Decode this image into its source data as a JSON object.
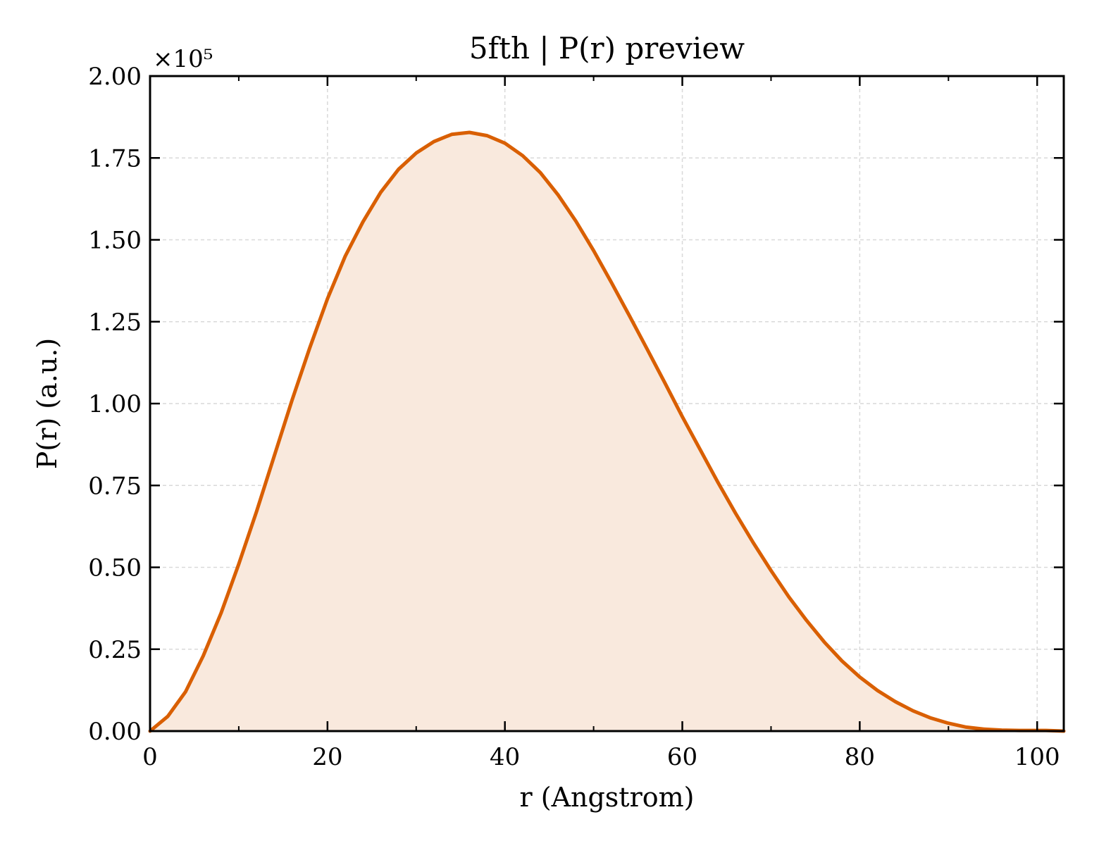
{
  "chart_data": {
    "type": "area",
    "title": "5fth | P(r) preview",
    "xlabel": "r (Angstrom)",
    "ylabel": "P(r) (a.u.)",
    "y_offset_label": "×10⁵",
    "xlim": [
      0,
      103
    ],
    "ylim": [
      0,
      2.0
    ],
    "y_scale_factor": 100000,
    "xticks": [
      0,
      20,
      40,
      60,
      80,
      100
    ],
    "xtick_labels": [
      "0",
      "20",
      "40",
      "60",
      "80",
      "100"
    ],
    "yticks": [
      0,
      0.25,
      0.5,
      0.75,
      1.0,
      1.25,
      1.5,
      1.75,
      2.0
    ],
    "ytick_labels": [
      "0.00",
      "0.25",
      "0.50",
      "0.75",
      "1.00",
      "1.25",
      "1.50",
      "1.75",
      "2.00"
    ],
    "grid": true,
    "colors": {
      "line": "#d95f02",
      "fill": "#f9e9dd",
      "grid": "#d9d9d9",
      "axes": "#000000"
    },
    "series": [
      {
        "x": [
          0,
          2,
          4,
          6,
          8,
          10,
          12,
          14,
          16,
          18,
          20,
          22,
          24,
          26,
          28,
          30,
          32,
          34,
          36,
          38,
          40,
          42,
          44,
          46,
          48,
          50,
          52,
          54,
          56,
          58,
          60,
          62,
          64,
          66,
          68,
          70,
          72,
          74,
          76,
          78,
          80,
          82,
          84,
          86,
          88,
          90,
          92,
          94,
          96,
          98,
          100,
          101,
          103
        ],
        "y": [
          0.0,
          0.045,
          0.12,
          0.23,
          0.36,
          0.51,
          0.67,
          0.84,
          1.01,
          1.17,
          1.32,
          1.45,
          1.555,
          1.645,
          1.715,
          1.765,
          1.8,
          1.822,
          1.828,
          1.818,
          1.795,
          1.757,
          1.705,
          1.637,
          1.557,
          1.467,
          1.37,
          1.27,
          1.168,
          1.065,
          0.96,
          0.86,
          0.76,
          0.665,
          0.575,
          0.49,
          0.41,
          0.338,
          0.272,
          0.214,
          0.165,
          0.124,
          0.09,
          0.062,
          0.04,
          0.024,
          0.012,
          0.006,
          0.003,
          0.002,
          0.002,
          0.002,
          0.0
        ]
      }
    ]
  }
}
